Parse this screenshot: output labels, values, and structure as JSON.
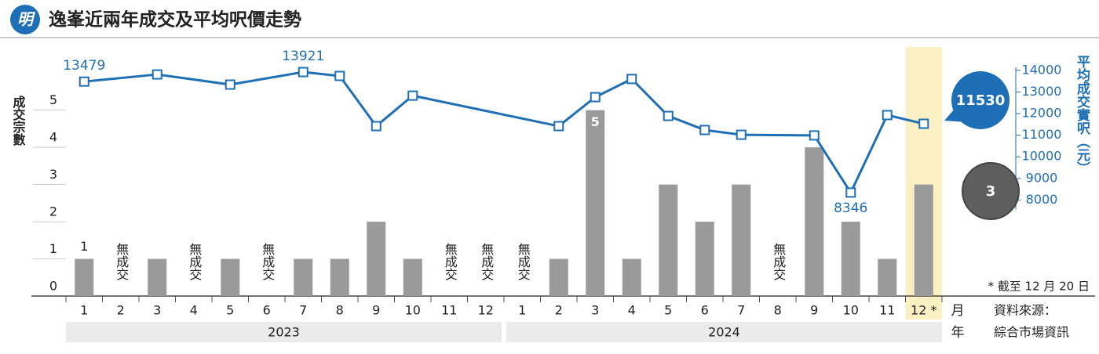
{
  "header": {
    "logo": "明"
  },
  "chart_data": {
    "type": "combo",
    "title": "逸峯近兩年成交及平均呎價走勢",
    "categories": [
      "1",
      "2",
      "3",
      "4",
      "5",
      "6",
      "7",
      "8",
      "9",
      "10",
      "11",
      "12",
      "1",
      "2",
      "3",
      "4",
      "5",
      "6",
      "7",
      "8",
      "9",
      "10",
      "11",
      "12 *"
    ],
    "x_groups": [
      "2023",
      "2024"
    ],
    "x_unit": "月",
    "x_group_unit": "年",
    "y_label": "成交宗數",
    "y2_label": "平均成交實呎（元）",
    "series": [
      {
        "type": "bar",
        "color": "#9a9a9a",
        "values": [
          1,
          0,
          1,
          0,
          1,
          0,
          1,
          1,
          2,
          1,
          0,
          0,
          0,
          1,
          5,
          1,
          3,
          2,
          3,
          0,
          4,
          2,
          1,
          3
        ],
        "value_labels": [
          "1",
          "無成交",
          null,
          "無成交",
          null,
          "無成交",
          null,
          null,
          null,
          null,
          "無成交",
          "無成交",
          "無成交",
          null,
          "5",
          null,
          null,
          null,
          null,
          "無成交",
          null,
          null,
          null,
          "3"
        ]
      },
      {
        "type": "line",
        "axis": "y2",
        "color": "#1e6fb5",
        "values": [
          13479,
          null,
          13810,
          null,
          13340,
          null,
          13921,
          13740,
          11420,
          12830,
          null,
          null,
          null,
          11420,
          12760,
          13600,
          11890,
          11240,
          11020,
          null,
          10990,
          8346,
          11930,
          11530
        ],
        "value_labels": [
          "13479",
          null,
          null,
          null,
          null,
          null,
          "13921",
          null,
          null,
          null,
          null,
          null,
          null,
          null,
          null,
          null,
          null,
          null,
          null,
          null,
          null,
          "8346",
          null,
          "11530"
        ]
      }
    ],
    "ylim": [
      0,
      6.7
    ],
    "yticks": [
      0,
      1,
      2,
      3,
      4,
      5
    ],
    "y2lim": [
      3560,
      15080
    ],
    "y2ticks": [
      8000,
      9000,
      10000,
      11000,
      12000,
      13000,
      14000
    ],
    "highlight_color": "#fbf0c4",
    "note": "* 截至 12 月 20 日",
    "source": [
      "資料來源：",
      "綜合市場資訊"
    ]
  }
}
